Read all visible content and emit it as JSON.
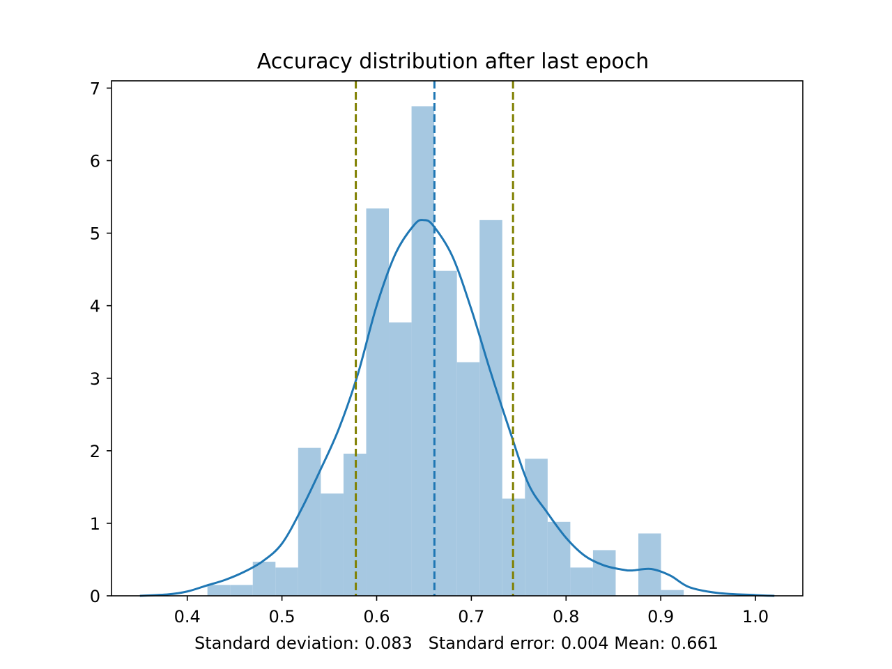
{
  "chart_data": {
    "type": "bar",
    "subtype": "histogram_with_kde",
    "title": "Accuracy distribution after last epoch",
    "xlabel": "Standard deviation: 0.083   Standard error: 0.004 Mean: 0.661",
    "ylabel": "",
    "xlim": [
      0.32,
      1.05
    ],
    "ylim": [
      0,
      7.1
    ],
    "xticks": [
      0.4,
      0.5,
      0.6,
      0.7,
      0.8,
      0.9,
      1.0
    ],
    "xtick_labels": [
      "0.4",
      "0.5",
      "0.6",
      "0.7",
      "0.8",
      "0.9",
      "1.0"
    ],
    "yticks": [
      0,
      1,
      2,
      3,
      4,
      5,
      6,
      7
    ],
    "ytick_labels": [
      "0",
      "1",
      "2",
      "3",
      "4",
      "5",
      "6",
      "7"
    ],
    "bins": {
      "start": 0.4213,
      "width": 0.02395,
      "density": [
        0.15,
        0.15,
        0.47,
        0.39,
        2.04,
        1.41,
        1.96,
        5.34,
        3.77,
        6.75,
        4.48,
        3.22,
        5.18,
        1.34,
        1.89,
        1.02,
        0.39,
        0.63,
        0.0,
        0.86,
        0.08
      ]
    },
    "kde": {
      "name": "density",
      "color": "#1f77b4",
      "x": [
        0.35,
        0.38,
        0.4,
        0.42,
        0.44,
        0.46,
        0.48,
        0.5,
        0.52,
        0.54,
        0.56,
        0.58,
        0.6,
        0.62,
        0.64,
        0.65,
        0.66,
        0.68,
        0.7,
        0.72,
        0.74,
        0.76,
        0.78,
        0.8,
        0.82,
        0.84,
        0.86,
        0.87,
        0.89,
        0.91,
        0.93,
        0.96,
        1.0,
        1.02
      ],
      "y": [
        0.0,
        0.02,
        0.06,
        0.14,
        0.22,
        0.33,
        0.48,
        0.72,
        1.18,
        1.72,
        2.3,
        3.05,
        4.0,
        4.72,
        5.12,
        5.18,
        5.1,
        4.68,
        3.95,
        3.1,
        2.3,
        1.55,
        1.15,
        0.8,
        0.55,
        0.42,
        0.36,
        0.35,
        0.37,
        0.28,
        0.12,
        0.04,
        0.01,
        0.0
      ]
    },
    "vlines": [
      {
        "name": "lower-std-line",
        "x": 0.578,
        "color": "#808000"
      },
      {
        "name": "mean-line",
        "x": 0.661,
        "color": "#1f77b4"
      },
      {
        "name": "upper-std-line",
        "x": 0.744,
        "color": "#808000"
      }
    ],
    "colors": {
      "bar": "#a6c8e1",
      "axis": "#000000"
    }
  }
}
